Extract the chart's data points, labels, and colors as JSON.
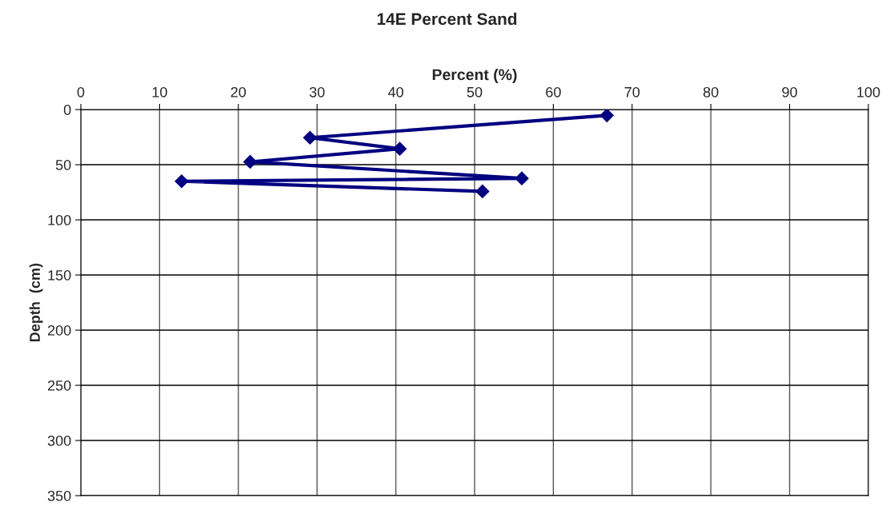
{
  "chart_data": {
    "type": "line",
    "title": "14E Percent Sand",
    "xlabel": "Percent (%)",
    "ylabel": "Depth  (cm)",
    "series": [
      {
        "color": "#000080",
        "x": [
          66.8,
          29.1,
          40.5,
          21.5,
          56.0,
          12.8,
          51.0
        ],
        "values": [
          5.3,
          25.5,
          35.6,
          47.4,
          62.4,
          65.0,
          74.2
        ]
      }
    ],
    "xlim": [
      0,
      100
    ],
    "xticks": [
      0,
      10,
      20,
      30,
      40,
      50,
      60,
      70,
      80,
      90,
      100
    ],
    "ylim": [
      350,
      0
    ],
    "yticks": [
      0,
      50,
      100,
      150,
      200,
      250,
      300,
      350
    ],
    "grid": true,
    "marker": "diamond",
    "line_style": "solid"
  }
}
